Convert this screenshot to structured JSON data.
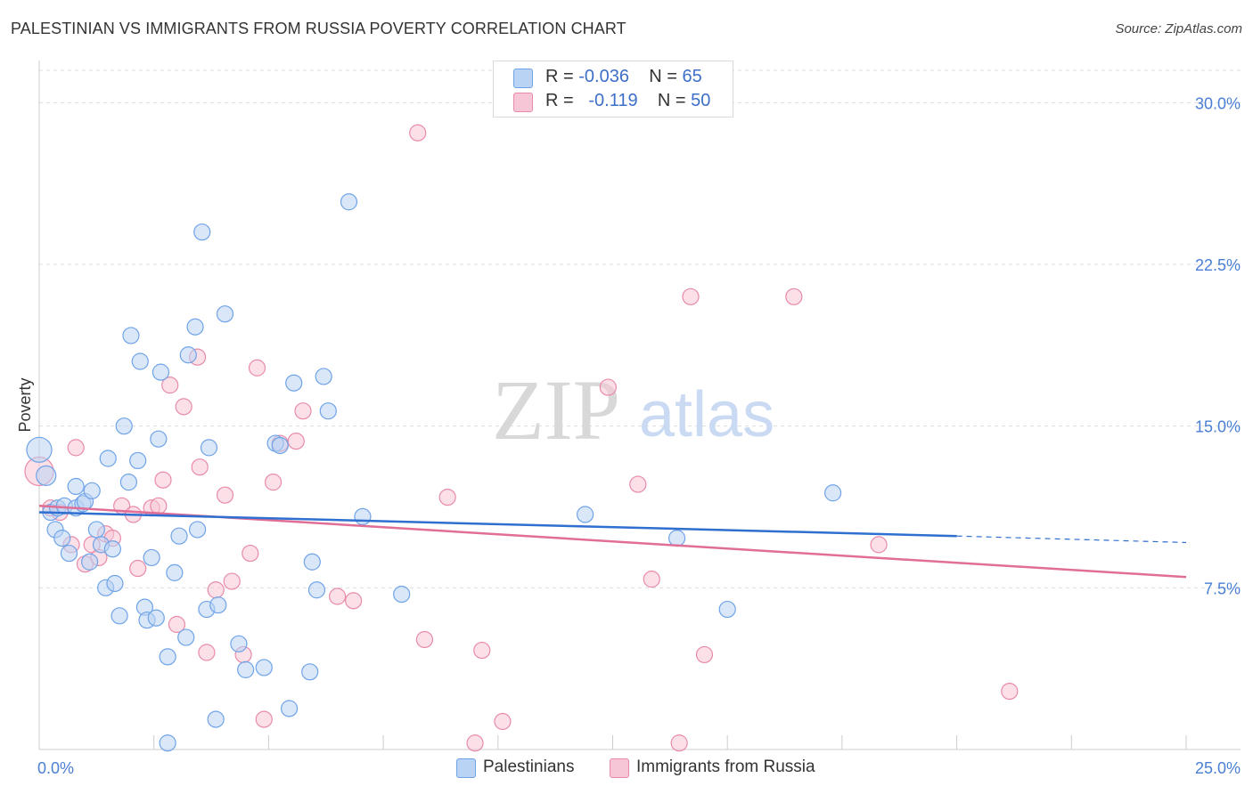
{
  "title": "PALESTINIAN VS IMMIGRANTS FROM RUSSIA POVERTY CORRELATION CHART",
  "source": "Source: ZipAtlas.com",
  "watermark": {
    "zip": "ZIP",
    "atlas": "atlas"
  },
  "colors": {
    "blue": "#6fa3e8",
    "blue_fill": "#b9d3f4",
    "blue_line": "#2f6fd0",
    "pink": "#e98aa9",
    "pink_fill": "#f7c6d6",
    "pink_line": "#e06e96",
    "grid": "#dddddd",
    "tick_text": "#4a7fd4"
  },
  "legend": {
    "palestinians": {
      "r_label": "R = ",
      "r_value": "-0.036",
      "n_label": "N = ",
      "n_value": "65"
    },
    "russia": {
      "r_label": "R = ",
      "r_value": "-0.119",
      "n_label": "N = ",
      "n_value": "50"
    }
  },
  "chart_data": {
    "type": "scatter",
    "title": "PALESTINIAN VS IMMIGRANTS FROM RUSSIA POVERTY CORRELATION CHART",
    "xlabel": "",
    "ylabel": "Poverty",
    "xlim": [
      0,
      25
    ],
    "ylim": [
      0,
      31.5
    ],
    "x_tick_labels": [
      "0.0%",
      "25.0%"
    ],
    "y_ticks": [
      7.5,
      15.0,
      22.5,
      30.0
    ],
    "y_tick_labels": [
      "7.5%",
      "15.0%",
      "22.5%",
      "30.0%"
    ],
    "grid": true,
    "series": [
      {
        "name": "Palestinians",
        "color": "blue",
        "R": -0.036,
        "N": 65,
        "trend": {
          "x0": 0,
          "y0": 11.0,
          "x1": 20,
          "y1": 9.9,
          "dash_to_x": 25,
          "dash_to_y": 9.6
        },
        "points": [
          [
            0.0,
            13.9,
            14
          ],
          [
            0.15,
            12.7,
            11
          ],
          [
            0.25,
            11.0,
            9
          ],
          [
            0.35,
            10.2,
            9
          ],
          [
            0.4,
            11.2,
            9
          ],
          [
            0.5,
            9.8,
            9
          ],
          [
            0.55,
            11.3,
            9
          ],
          [
            0.65,
            9.1,
            9
          ],
          [
            0.8,
            11.2,
            9
          ],
          [
            0.8,
            12.2,
            9
          ],
          [
            0.95,
            11.4,
            9
          ],
          [
            1.0,
            11.5,
            9
          ],
          [
            1.1,
            8.7,
            9
          ],
          [
            1.15,
            12.0,
            9
          ],
          [
            1.25,
            10.2,
            9
          ],
          [
            1.35,
            9.5,
            9
          ],
          [
            1.45,
            7.5,
            9
          ],
          [
            1.5,
            13.5,
            9
          ],
          [
            1.6,
            9.3,
            9
          ],
          [
            1.65,
            7.7,
            9
          ],
          [
            1.75,
            6.2,
            9
          ],
          [
            1.85,
            15.0,
            9
          ],
          [
            1.95,
            12.4,
            9
          ],
          [
            2.0,
            19.2,
            9
          ],
          [
            2.15,
            13.4,
            9
          ],
          [
            2.2,
            18.0,
            9
          ],
          [
            2.3,
            6.6,
            9
          ],
          [
            2.35,
            6.0,
            9
          ],
          [
            2.45,
            8.9,
            9
          ],
          [
            2.55,
            6.1,
            9
          ],
          [
            2.6,
            14.4,
            9
          ],
          [
            2.65,
            17.5,
            9
          ],
          [
            2.8,
            4.3,
            9
          ],
          [
            2.95,
            8.2,
            9
          ],
          [
            3.05,
            9.9,
            9
          ],
          [
            3.2,
            5.2,
            9
          ],
          [
            3.25,
            18.3,
            9
          ],
          [
            3.4,
            19.6,
            9
          ],
          [
            3.45,
            10.2,
            9
          ],
          [
            3.55,
            24.0,
            9
          ],
          [
            3.65,
            6.5,
            9
          ],
          [
            3.7,
            14.0,
            9
          ],
          [
            3.85,
            1.4,
            9
          ],
          [
            3.9,
            6.7,
            9
          ],
          [
            4.05,
            20.2,
            9
          ],
          [
            4.35,
            4.9,
            9
          ],
          [
            4.5,
            3.7,
            9
          ],
          [
            4.9,
            3.8,
            9
          ],
          [
            5.15,
            14.2,
            9
          ],
          [
            5.25,
            14.1,
            9
          ],
          [
            5.45,
            1.9,
            9
          ],
          [
            5.55,
            17.0,
            9
          ],
          [
            5.9,
            3.6,
            9
          ],
          [
            5.95,
            8.7,
            9
          ],
          [
            6.05,
            7.4,
            9
          ],
          [
            6.2,
            17.3,
            9
          ],
          [
            6.3,
            15.7,
            9
          ],
          [
            6.75,
            25.4,
            9
          ],
          [
            7.05,
            10.8,
            9
          ],
          [
            7.9,
            7.2,
            9
          ],
          [
            11.9,
            10.9,
            9
          ],
          [
            13.9,
            9.8,
            9
          ],
          [
            15.0,
            6.5,
            9
          ],
          [
            17.3,
            11.9,
            9
          ],
          [
            2.8,
            0.3,
            9
          ]
        ]
      },
      {
        "name": "Immigrants from Russia",
        "color": "pink",
        "R": -0.119,
        "N": 50,
        "trend": {
          "x0": 0,
          "y0": 11.3,
          "x1": 25,
          "y1": 8.0
        },
        "points": [
          [
            0.0,
            12.9,
            16
          ],
          [
            0.25,
            11.2,
            9
          ],
          [
            0.45,
            11.0,
            9
          ],
          [
            0.7,
            9.5,
            9
          ],
          [
            0.8,
            14.0,
            9
          ],
          [
            1.0,
            8.6,
            9
          ],
          [
            1.15,
            9.5,
            9
          ],
          [
            1.3,
            8.9,
            9
          ],
          [
            1.45,
            10.0,
            9
          ],
          [
            1.6,
            9.8,
            9
          ],
          [
            1.8,
            11.3,
            9
          ],
          [
            2.05,
            10.9,
            9
          ],
          [
            2.15,
            8.4,
            9
          ],
          [
            2.45,
            11.2,
            9
          ],
          [
            2.6,
            11.3,
            9
          ],
          [
            2.7,
            12.5,
            9
          ],
          [
            2.85,
            16.9,
            9
          ],
          [
            3.0,
            5.8,
            9
          ],
          [
            3.15,
            15.9,
            9
          ],
          [
            3.45,
            18.2,
            9
          ],
          [
            3.5,
            13.1,
            9
          ],
          [
            3.65,
            4.5,
            9
          ],
          [
            3.85,
            7.4,
            9
          ],
          [
            4.05,
            11.8,
            9
          ],
          [
            4.2,
            7.8,
            9
          ],
          [
            4.45,
            4.4,
            9
          ],
          [
            4.6,
            9.1,
            9
          ],
          [
            4.75,
            17.7,
            9
          ],
          [
            4.9,
            1.4,
            9
          ],
          [
            5.1,
            12.4,
            9
          ],
          [
            5.25,
            14.2,
            9
          ],
          [
            5.6,
            14.3,
            9
          ],
          [
            5.75,
            15.7,
            9
          ],
          [
            6.5,
            7.1,
            9
          ],
          [
            6.85,
            6.9,
            9
          ],
          [
            8.25,
            28.6,
            9
          ],
          [
            8.4,
            5.1,
            9
          ],
          [
            8.9,
            11.7,
            9
          ],
          [
            9.5,
            0.3,
            9
          ],
          [
            9.65,
            4.6,
            9
          ],
          [
            10.1,
            1.3,
            9
          ],
          [
            12.4,
            16.8,
            9
          ],
          [
            13.05,
            12.3,
            9
          ],
          [
            13.35,
            7.9,
            9
          ],
          [
            13.95,
            0.3,
            9
          ],
          [
            14.2,
            21.0,
            9
          ],
          [
            14.5,
            4.4,
            9
          ],
          [
            16.45,
            21.0,
            9
          ],
          [
            18.3,
            9.5,
            9
          ],
          [
            21.15,
            2.7,
            9
          ]
        ]
      }
    ]
  }
}
